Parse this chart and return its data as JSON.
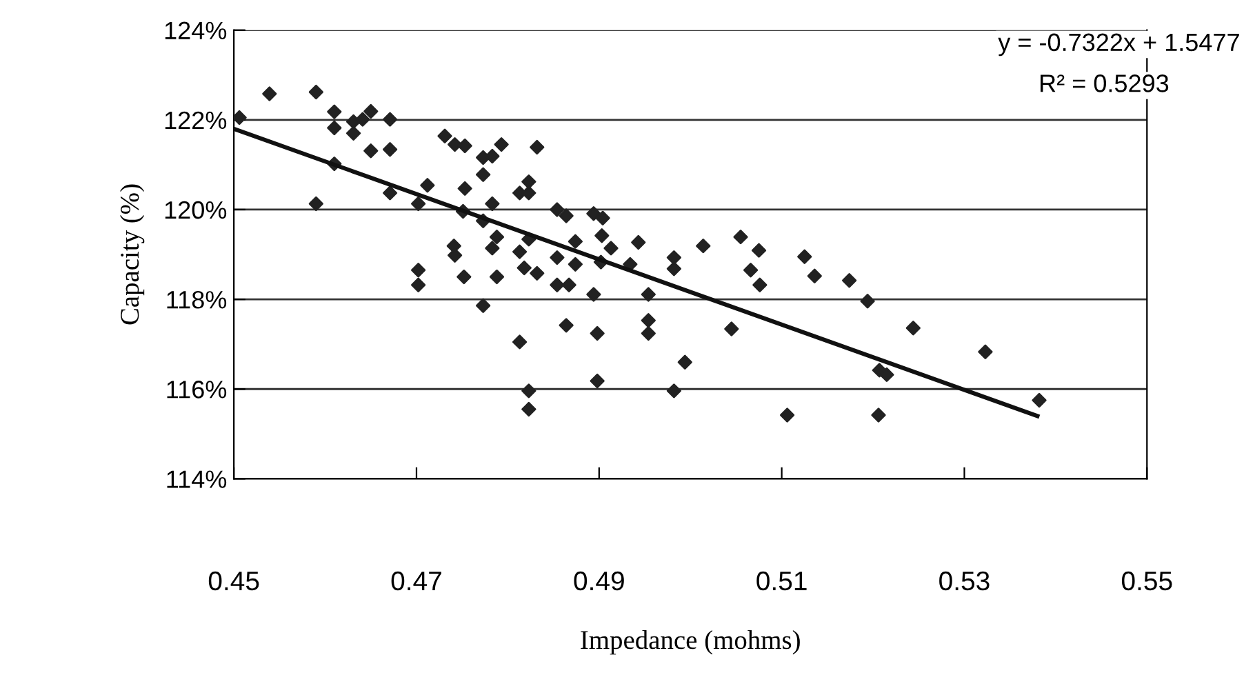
{
  "chart_data": {
    "type": "scatter",
    "xlabel": "Impedance (mohms)",
    "ylabel": "Capacity (%)",
    "annotations": [
      "y = -0.7322x + 1.5477",
      "R² = 0.5293"
    ],
    "xlim": [
      0.45,
      0.55
    ],
    "xticks": [
      0.45,
      0.47,
      0.49,
      0.51,
      0.53,
      0.55
    ],
    "ylim": [
      114,
      124
    ],
    "yticks": [
      {
        "value": 114,
        "label": "114%"
      },
      {
        "value": 116,
        "label": "116%"
      },
      {
        "value": 118,
        "label": "118%"
      },
      {
        "value": 120,
        "label": "120%"
      },
      {
        "value": 122,
        "label": "122%"
      },
      {
        "value": 124,
        "label": "124%"
      }
    ],
    "grid": "y",
    "marker": "diamond",
    "legend": false,
    "series": [
      {
        "color": "#222222",
        "x": [
          0.4506,
          0.4539,
          0.459,
          0.461,
          0.461,
          0.4631,
          0.4631,
          0.4641,
          0.465,
          0.4671,
          0.465,
          0.4671,
          0.461,
          0.459,
          0.4671,
          0.4702,
          0.4712,
          0.4731,
          0.4742,
          0.4753,
          0.4773,
          0.4783,
          0.4793,
          0.4832,
          0.4773,
          0.4753,
          0.4823,
          0.4813,
          0.4823,
          0.4751,
          0.4773,
          0.4783,
          0.4741,
          0.4742,
          0.4788,
          0.4783,
          0.4813,
          0.4823,
          0.4702,
          0.4702,
          0.4773,
          0.4813,
          0.4823,
          0.4823,
          0.4854,
          0.4864,
          0.4864,
          0.4894,
          0.4904,
          0.4903,
          0.4913,
          0.4943,
          0.4874,
          0.4854,
          0.4874,
          0.4902,
          0.4934,
          0.4982,
          0.4982,
          0.5014,
          0.5055,
          0.5075,
          0.5066,
          0.5076,
          0.5125,
          0.5136,
          0.5174,
          0.4832,
          0.4854,
          0.4867,
          0.4894,
          0.4954,
          0.4954,
          0.4954,
          0.4898,
          0.5045,
          0.4994,
          0.4898,
          0.4982,
          0.5106,
          0.5194,
          0.5244,
          0.5323,
          0.5207,
          0.5215,
          0.5206,
          0.5382,
          0.4752,
          0.4788,
          0.4818
        ],
        "values": [
          122.05,
          122.58,
          122.62,
          122.18,
          121.82,
          121.96,
          121.7,
          122.01,
          122.19,
          122.01,
          121.31,
          121.34,
          121.02,
          120.13,
          120.37,
          120.13,
          120.54,
          121.64,
          121.45,
          121.42,
          121.16,
          121.19,
          121.45,
          121.39,
          120.78,
          120.47,
          120.62,
          120.37,
          120.37,
          119.96,
          119.75,
          120.13,
          119.19,
          118.98,
          119.39,
          119.14,
          119.06,
          119.34,
          118.65,
          118.32,
          117.86,
          117.05,
          115.96,
          115.55,
          120.0,
          119.86,
          117.42,
          119.91,
          119.81,
          119.42,
          119.14,
          119.27,
          119.29,
          118.93,
          118.78,
          118.83,
          118.78,
          118.93,
          118.68,
          119.19,
          119.39,
          119.09,
          118.65,
          118.32,
          118.95,
          118.52,
          118.42,
          118.58,
          118.32,
          118.32,
          118.11,
          118.11,
          117.53,
          117.24,
          117.24,
          117.34,
          116.6,
          116.18,
          115.96,
          115.42,
          117.96,
          117.36,
          116.83,
          116.42,
          116.32,
          115.42,
          115.75,
          118.5,
          118.5,
          118.7
        ]
      },
      {
        "type": "line",
        "color": "#111111",
        "marker": "none",
        "x": [
          0.45,
          0.538
        ],
        "values": [
          121.8,
          115.4
        ]
      }
    ]
  }
}
